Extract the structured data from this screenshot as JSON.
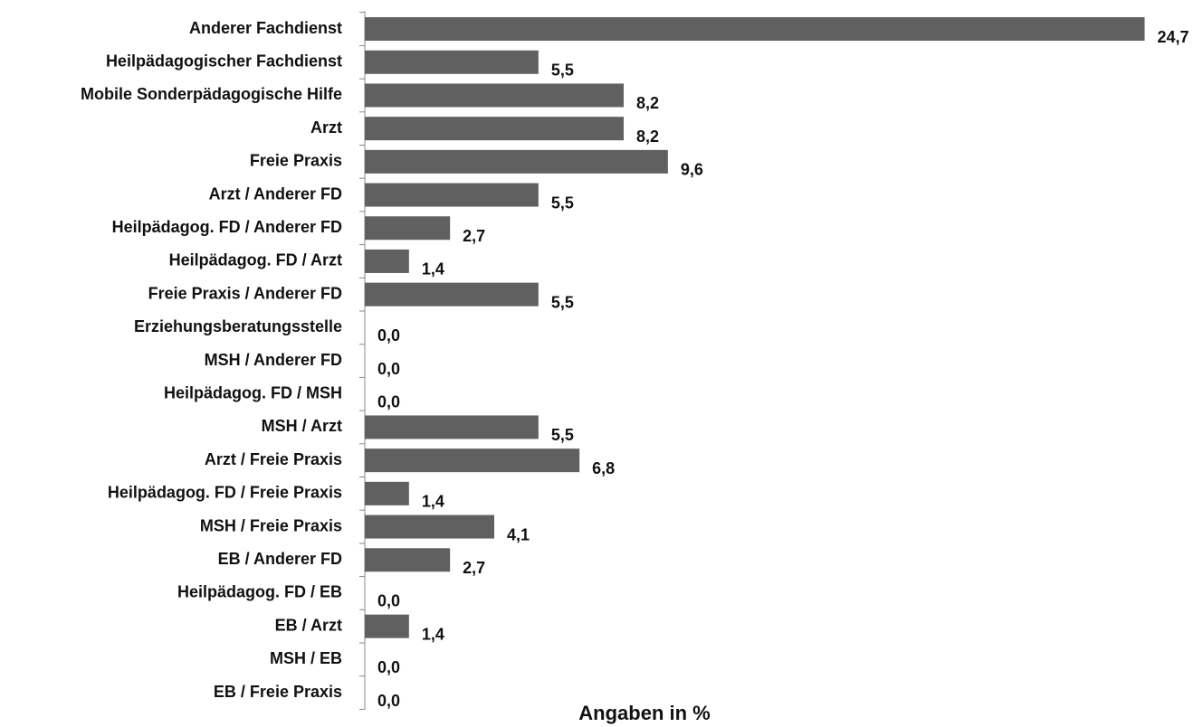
{
  "chart_data": {
    "type": "barh",
    "x_label": "Angaben in %",
    "categories": [
      "Anderer Fachdienst",
      "Heilpädagogischer Fachdienst",
      "Mobile Sonderpädagogische Hilfe",
      "Arzt",
      "Freie Praxis",
      "Arzt  / Anderer FD",
      "Heilpädagog. FD / Anderer FD",
      "Heilpädagog. FD / Arzt",
      "Freie Praxis / Anderer FD",
      "Erziehungsberatungsstelle",
      "MSH / Anderer FD",
      "Heilpädagog. FD / MSH",
      "MSH / Arzt",
      "Arzt / Freie Praxis",
      "Heilpädagog. FD / Freie Praxis",
      "MSH / Freie Praxis",
      "EB / Anderer FD",
      "Heilpädagog. FD / EB",
      "EB / Arzt",
      "MSH / EB",
      "EB / Freie Praxis"
    ],
    "values": [
      24.7,
      5.5,
      8.2,
      8.2,
      9.6,
      5.5,
      2.7,
      1.4,
      5.5,
      0.0,
      0.0,
      0.0,
      5.5,
      6.8,
      1.4,
      4.1,
      2.7,
      0.0,
      1.4,
      0.0,
      0.0
    ],
    "value_labels": [
      "24,7",
      "5,5",
      "8,2",
      "8,2",
      "9,6",
      "5,5",
      "2,7",
      "1,4",
      "5,5",
      "0,0",
      "0,0",
      "0,0",
      "5,5",
      "6,8",
      "1,4",
      "4,1",
      "2,7",
      "0,0",
      "1,4",
      "0,0",
      "0,0"
    ],
    "color": "#606060",
    "xlim": [
      0,
      25
    ]
  }
}
